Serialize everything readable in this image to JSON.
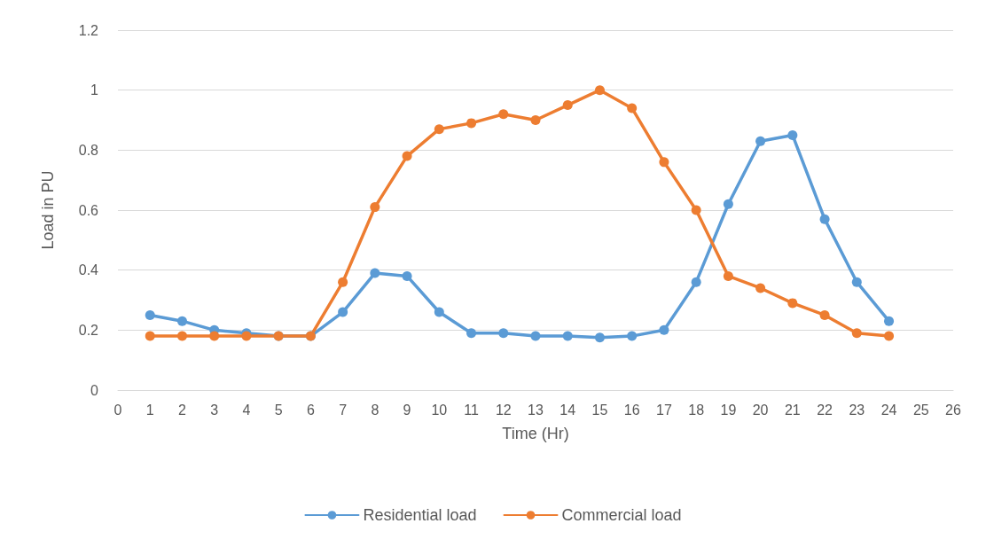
{
  "chart_data": {
    "type": "line",
    "xlabel": "Time (Hr)",
    "ylabel": "Load in PU",
    "x": [
      1,
      2,
      3,
      4,
      5,
      6,
      7,
      8,
      9,
      10,
      11,
      12,
      13,
      14,
      15,
      16,
      17,
      18,
      19,
      20,
      21,
      22,
      23,
      24
    ],
    "series": [
      {
        "name": "Residential load",
        "color": "#5b9bd5",
        "values": [
          0.25,
          0.23,
          0.2,
          0.19,
          0.18,
          0.18,
          0.26,
          0.39,
          0.38,
          0.26,
          0.19,
          0.19,
          0.18,
          0.18,
          0.175,
          0.18,
          0.2,
          0.36,
          0.62,
          0.83,
          0.85,
          0.57,
          0.36,
          0.23
        ]
      },
      {
        "name": "Commercial load",
        "color": "#ed7d31",
        "values": [
          0.18,
          0.18,
          0.18,
          0.18,
          0.18,
          0.18,
          0.36,
          0.61,
          0.78,
          0.87,
          0.89,
          0.92,
          0.9,
          0.95,
          1.0,
          0.94,
          0.76,
          0.6,
          0.38,
          0.34,
          0.29,
          0.25,
          0.19,
          0.18
        ]
      }
    ],
    "xlim": [
      0,
      26
    ],
    "xticks": [
      0,
      1,
      2,
      3,
      4,
      5,
      6,
      7,
      8,
      9,
      10,
      11,
      12,
      13,
      14,
      15,
      16,
      17,
      18,
      19,
      20,
      21,
      22,
      23,
      24,
      25,
      26
    ],
    "ylim": [
      0,
      1.2
    ],
    "yticks": [
      0,
      0.2,
      0.4,
      0.6,
      0.8,
      1,
      1.2
    ],
    "grid": "y",
    "legend": "bottom",
    "marker": "circle",
    "line_style": "solid"
  }
}
